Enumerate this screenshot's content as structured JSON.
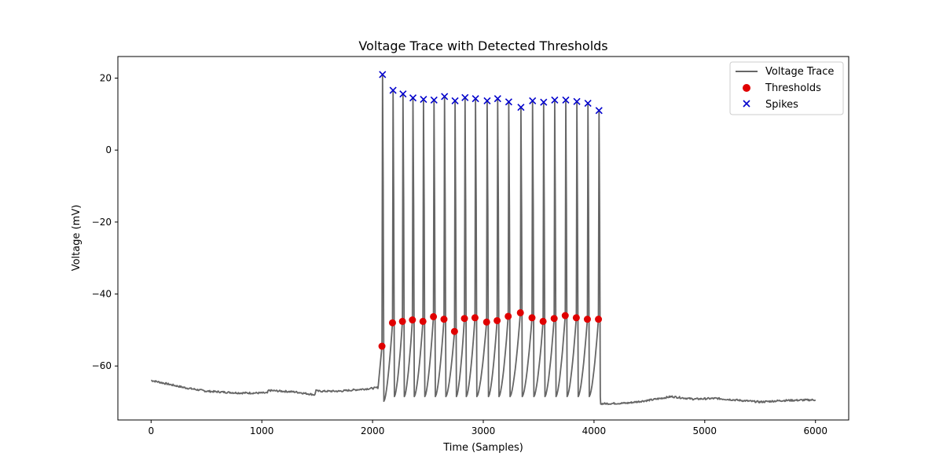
{
  "chart_data": {
    "type": "line",
    "title": "Voltage Trace with Detected Thresholds",
    "xlabel": "Time (Samples)",
    "ylabel": "Voltage (mV)",
    "xlim": [
      -300,
      6300
    ],
    "ylim": [
      -75,
      26
    ],
    "xticks": [
      0,
      1000,
      2000,
      3000,
      4000,
      5000,
      6000
    ],
    "yticks": [
      -60,
      -40,
      -20,
      0,
      20
    ],
    "ytick_labels": [
      "−60",
      "−40",
      "−20",
      "0",
      "20"
    ],
    "grid": false,
    "legend_position": "top-right",
    "colors": {
      "trace": "#666666",
      "thresholds": "#e00000",
      "spikes": "#0000cc"
    },
    "series": [
      {
        "name": "Voltage Trace",
        "kind": "line",
        "baseline_pre": [
          [
            0,
            -64
          ],
          [
            300,
            -66
          ],
          [
            500,
            -67
          ],
          [
            800,
            -67.5
          ],
          [
            1050,
            -67.5
          ],
          [
            1060,
            -66.8
          ],
          [
            1300,
            -67.2
          ],
          [
            1480,
            -68
          ],
          [
            1490,
            -66.5
          ],
          [
            1500,
            -67
          ],
          [
            1700,
            -67
          ],
          [
            2000,
            -66.2
          ],
          [
            2050,
            -66
          ]
        ],
        "baseline_post": [
          [
            4060,
            -70.5
          ],
          [
            4300,
            -70.3
          ],
          [
            4500,
            -69.5
          ],
          [
            4700,
            -68.5
          ],
          [
            4900,
            -69.2
          ],
          [
            5100,
            -69
          ],
          [
            5300,
            -69.5
          ],
          [
            5500,
            -70
          ],
          [
            5700,
            -69.6
          ],
          [
            6000,
            -69.4
          ]
        ],
        "trough_after_spike": -68.5,
        "first_trough": -69.8,
        "end_step_voltage": -70.5
      },
      {
        "name": "Thresholds",
        "kind": "scatter",
        "x": [
          2085,
          2180,
          2270,
          2360,
          2455,
          2550,
          2645,
          2740,
          2830,
          2925,
          3030,
          3125,
          3225,
          3335,
          3440,
          3540,
          3640,
          3740,
          3840,
          3940,
          4040
        ],
        "y": [
          -54.5,
          -48,
          -47.6,
          -47.2,
          -47.6,
          -46.3,
          -47,
          -50.4,
          -46.8,
          -46.6,
          -47.8,
          -47.4,
          -46.2,
          -45.2,
          -46.6,
          -47.6,
          -46.8,
          -46,
          -46.6,
          -47,
          -47
        ]
      },
      {
        "name": "Spikes",
        "kind": "scatter",
        "x": [
          2090,
          2185,
          2275,
          2365,
          2460,
          2555,
          2650,
          2745,
          2835,
          2930,
          3035,
          3130,
          3230,
          3340,
          3445,
          3545,
          3645,
          3745,
          3845,
          3945,
          4045
        ],
        "y": [
          21,
          16.6,
          15.6,
          14.5,
          14.1,
          13.9,
          14.9,
          13.7,
          14.6,
          14.3,
          13.7,
          14.3,
          13.4,
          11.9,
          13.7,
          13.3,
          13.9,
          13.9,
          13.5,
          13,
          11
        ]
      }
    ]
  }
}
